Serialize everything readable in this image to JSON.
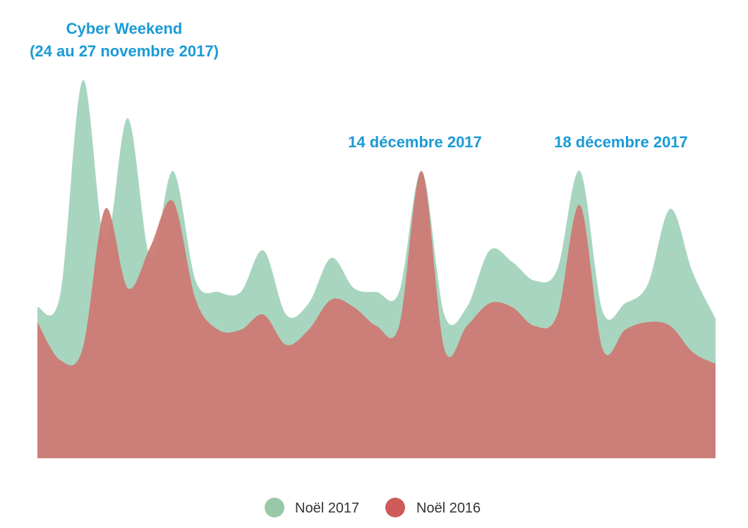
{
  "chart_data": {
    "type": "area",
    "title": "",
    "xlabel": "",
    "ylabel": "",
    "grid": false,
    "legend_position": "bottom-center",
    "ylim": [
      0,
      100
    ],
    "x": [
      0,
      1,
      2,
      3,
      4,
      5,
      6,
      7,
      8,
      9,
      10,
      11,
      12,
      13,
      14,
      15,
      16,
      17,
      18,
      19,
      20,
      21,
      22,
      23,
      24,
      25,
      26,
      27,
      28,
      29,
      30
    ],
    "series": [
      {
        "name": "Noël 2017",
        "color": "#a8d5bf",
        "legend_color": "#98c8a8",
        "values": [
          40,
          43,
          100,
          57,
          90,
          53,
          76,
          47,
          44,
          44,
          55,
          38,
          41,
          53,
          45,
          44,
          44,
          76,
          38,
          40,
          55,
          52,
          47,
          50,
          76,
          39,
          41,
          46,
          66,
          49,
          37
        ]
      },
      {
        "name": "Noël 2016",
        "color": "#cc7a74",
        "legend_color": "#cf5a5a",
        "values": [
          36,
          26,
          29,
          66,
          45,
          56,
          68,
          42,
          34,
          34,
          38,
          30,
          34,
          42,
          40,
          35,
          35,
          76,
          29,
          35,
          41,
          40,
          35,
          38,
          67,
          29,
          34,
          36,
          35,
          28,
          25
        ]
      }
    ],
    "annotations": [
      {
        "text": "Cyber Weekend",
        "x": 2,
        "y": 100,
        "color": "#1a9ad6"
      },
      {
        "text": "(24 au 27 novembre 2017)",
        "x": 2,
        "y": 100,
        "color": "#1a9ad6"
      },
      {
        "text": "14 décembre 2017",
        "x": 17,
        "y": 76,
        "color": "#1a9ad6"
      },
      {
        "text": "18 décembre 2017",
        "x": 24,
        "y": 76,
        "color": "#1a9ad6"
      }
    ]
  }
}
